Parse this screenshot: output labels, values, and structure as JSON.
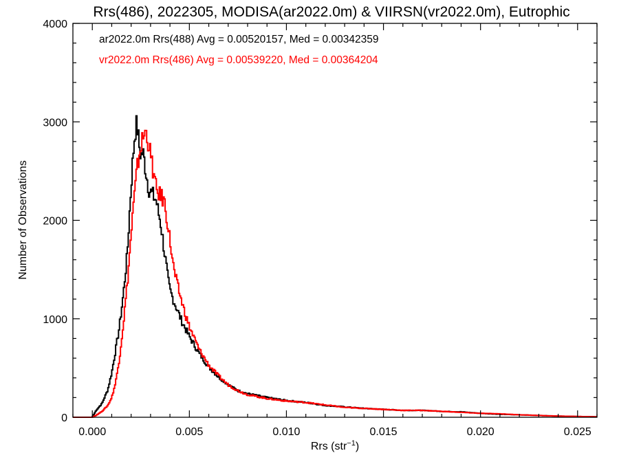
{
  "chart_data": {
    "type": "histogram",
    "title": "Rrs(486), 2022305, MODISA(ar2022.0m) & VIIRSN(vr2022.0m), Eutrophic",
    "xlabel_text": "Rrs (str",
    "xlabel_sup": "−1",
    "xlabel_close": ")",
    "ylabel": "Number of Observations",
    "xlim": [
      -0.001,
      0.026
    ],
    "ylim": [
      0,
      4000
    ],
    "x_ticks": [
      0.0,
      0.005,
      0.01,
      0.015,
      0.02,
      0.025
    ],
    "x_tick_labels": [
      "0.000",
      "0.005",
      "0.010",
      "0.015",
      "0.020",
      "0.025"
    ],
    "y_ticks": [
      0,
      1000,
      2000,
      3000,
      4000
    ],
    "y_tick_labels": [
      "0",
      "1000",
      "2000",
      "3000",
      "4000"
    ],
    "grid": false,
    "legend_position": "top-left",
    "series": [
      {
        "name": "ar2022.0m Rrs(488)",
        "legend": "ar2022.0m Rrs(488) Avg = 0.00520157, Med = 0.00342359",
        "color": "#000000",
        "points": [
          [
            -0.001,
            0
          ],
          [
            0.0,
            0
          ],
          [
            0.0002,
            70
          ],
          [
            0.0005,
            140
          ],
          [
            0.0008,
            280
          ],
          [
            0.001,
            450
          ],
          [
            0.0012,
            680
          ],
          [
            0.0014,
            920
          ],
          [
            0.0016,
            1250
          ],
          [
            0.0018,
            1650
          ],
          [
            0.0019,
            2000
          ],
          [
            0.002,
            2350
          ],
          [
            0.0021,
            2650
          ],
          [
            0.0022,
            2900
          ],
          [
            0.0023,
            2980
          ],
          [
            0.0024,
            2780
          ],
          [
            0.0025,
            2650
          ],
          [
            0.0026,
            2700
          ],
          [
            0.0027,
            2580
          ],
          [
            0.0028,
            2450
          ],
          [
            0.0029,
            2330
          ],
          [
            0.003,
            2290
          ],
          [
            0.0031,
            2260
          ],
          [
            0.0032,
            2230
          ],
          [
            0.0033,
            2200
          ],
          [
            0.0034,
            2080
          ],
          [
            0.0035,
            2000
          ],
          [
            0.0036,
            1860
          ],
          [
            0.0037,
            1700
          ],
          [
            0.0038,
            1560
          ],
          [
            0.0039,
            1400
          ],
          [
            0.004,
            1290
          ],
          [
            0.0042,
            1180
          ],
          [
            0.0044,
            1080
          ],
          [
            0.0046,
            980
          ],
          [
            0.0048,
            900
          ],
          [
            0.005,
            820
          ],
          [
            0.0055,
            650
          ],
          [
            0.006,
            510
          ],
          [
            0.0065,
            410
          ],
          [
            0.007,
            330
          ],
          [
            0.0075,
            270
          ],
          [
            0.008,
            240
          ],
          [
            0.009,
            200
          ],
          [
            0.01,
            170
          ],
          [
            0.011,
            150
          ],
          [
            0.012,
            120
          ],
          [
            0.013,
            105
          ],
          [
            0.014,
            90
          ],
          [
            0.015,
            80
          ],
          [
            0.016,
            70
          ],
          [
            0.017,
            70
          ],
          [
            0.018,
            60
          ],
          [
            0.019,
            55
          ],
          [
            0.02,
            40
          ],
          [
            0.021,
            30
          ],
          [
            0.022,
            25
          ],
          [
            0.023,
            18
          ],
          [
            0.024,
            12
          ],
          [
            0.025,
            8
          ],
          [
            0.026,
            5
          ]
        ]
      },
      {
        "name": "vr2022.0m Rrs(486)",
        "legend": "vr2022.0m Rrs(486) Avg = 0.00539220, Med = 0.00364204",
        "color": "#ff0000",
        "points": [
          [
            -0.001,
            0
          ],
          [
            0.0,
            0
          ],
          [
            0.0002,
            20
          ],
          [
            0.0005,
            60
          ],
          [
            0.0008,
            120
          ],
          [
            0.001,
            200
          ],
          [
            0.0012,
            350
          ],
          [
            0.0014,
            600
          ],
          [
            0.0016,
            950
          ],
          [
            0.0018,
            1350
          ],
          [
            0.002,
            1850
          ],
          [
            0.0021,
            2100
          ],
          [
            0.0022,
            2300
          ],
          [
            0.0023,
            2500
          ],
          [
            0.0024,
            2650
          ],
          [
            0.0025,
            2750
          ],
          [
            0.0026,
            2820
          ],
          [
            0.0027,
            2890
          ],
          [
            0.0028,
            2880
          ],
          [
            0.0029,
            2790
          ],
          [
            0.003,
            2650
          ],
          [
            0.0031,
            2550
          ],
          [
            0.0032,
            2420
          ],
          [
            0.0033,
            2300
          ],
          [
            0.0034,
            2280
          ],
          [
            0.0035,
            2250
          ],
          [
            0.0036,
            2230
          ],
          [
            0.0037,
            2200
          ],
          [
            0.0038,
            2080
          ],
          [
            0.0039,
            1950
          ],
          [
            0.004,
            1800
          ],
          [
            0.0041,
            1650
          ],
          [
            0.0042,
            1500
          ],
          [
            0.0044,
            1330
          ],
          [
            0.0046,
            1180
          ],
          [
            0.0048,
            1040
          ],
          [
            0.005,
            920
          ],
          [
            0.0055,
            690
          ],
          [
            0.006,
            530
          ],
          [
            0.0065,
            420
          ],
          [
            0.007,
            330
          ],
          [
            0.0075,
            270
          ],
          [
            0.008,
            230
          ],
          [
            0.009,
            190
          ],
          [
            0.01,
            165
          ],
          [
            0.011,
            150
          ],
          [
            0.012,
            125
          ],
          [
            0.013,
            100
          ],
          [
            0.014,
            90
          ],
          [
            0.015,
            80
          ],
          [
            0.016,
            70
          ],
          [
            0.017,
            70
          ],
          [
            0.018,
            60
          ],
          [
            0.019,
            50
          ],
          [
            0.02,
            40
          ],
          [
            0.021,
            35
          ],
          [
            0.022,
            25
          ],
          [
            0.023,
            18
          ],
          [
            0.024,
            12
          ],
          [
            0.025,
            8
          ],
          [
            0.026,
            5
          ]
        ]
      }
    ]
  }
}
